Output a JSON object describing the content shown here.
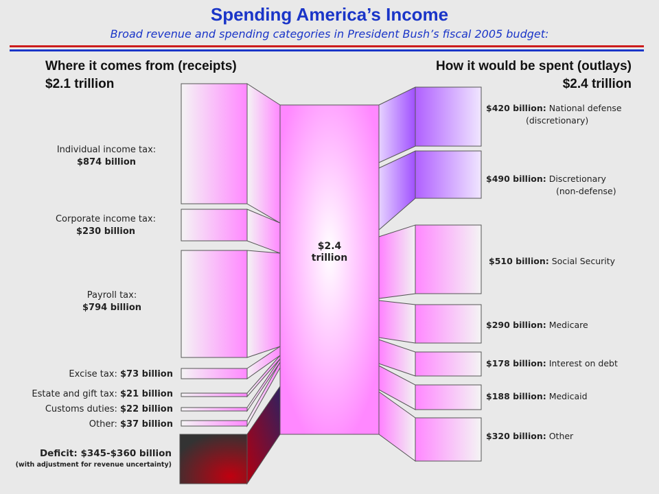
{
  "header": {
    "title": "Spending America’s Income",
    "subtitle": "Broad revenue and spending categories in President Bush’s fiscal 2005 budget:"
  },
  "colors": {
    "title": "#1a35c8",
    "stripe_red": "#cc1c1c",
    "stripe_blue": "#1a35c8",
    "flow_pink": "#ff80ff",
    "flow_purple": "#bb66ff",
    "deficit_red": "#c00010"
  },
  "receipts": {
    "heading": "Where it comes from (receipts)",
    "total": "$2.1 trillion",
    "items": [
      {
        "name": "Individual income tax:",
        "amount": "$874 billion"
      },
      {
        "name": "Corporate income tax:",
        "amount": "$230 billion"
      },
      {
        "name": "Payroll tax:",
        "amount": "$794 billion"
      },
      {
        "name": "Excise tax:",
        "amount": "$73 billion"
      },
      {
        "name": "Estate and gift tax:",
        "amount": "$21 billion"
      },
      {
        "name": "Customs duties:",
        "amount": "$22 billion"
      },
      {
        "name": "Other:",
        "amount": "$37 billion"
      }
    ],
    "deficit": {
      "label": "Deficit: $345-$360 billion",
      "note": "(with adjustment for revenue uncertainty)"
    }
  },
  "center": {
    "line1": "$2.4",
    "line2": "trillion"
  },
  "outlays": {
    "heading": "How it would be spent (outlays)",
    "total": "$2.4 trillion",
    "items": [
      {
        "amount": "$420 billion:",
        "name": "National defense",
        "name2": "(discretionary)"
      },
      {
        "amount": "$490 billion:",
        "name": "Discretionary",
        "name2": "(non-defense)"
      },
      {
        "amount": "$510 billion:",
        "name": "Social Security"
      },
      {
        "amount": "$290 billion:",
        "name": "Medicare"
      },
      {
        "amount": "$178 billion:",
        "name": "Interest on debt"
      },
      {
        "amount": "$188 billion:",
        "name": "Medicaid"
      },
      {
        "amount": "$320 billion:",
        "name": "Other"
      }
    ]
  }
}
